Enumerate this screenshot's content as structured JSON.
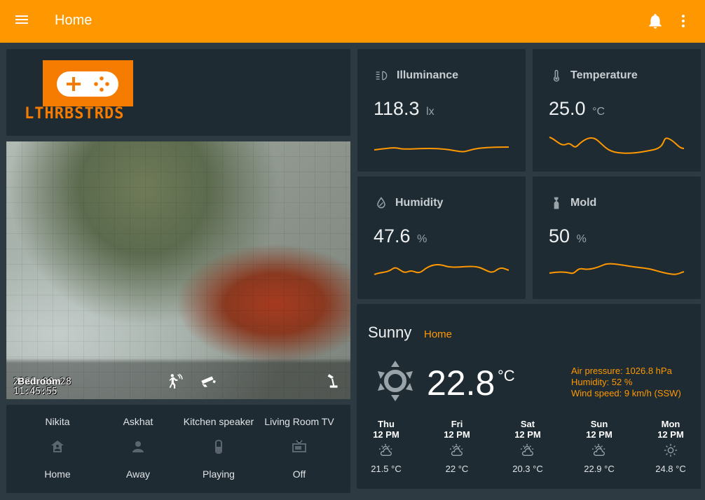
{
  "header": {
    "title": "Home"
  },
  "logo": {
    "text": "LTHRBSTRDS"
  },
  "camera": {
    "name": "Bedroom",
    "date": "2021-09-28",
    "time": "11:45:55"
  },
  "glance": [
    {
      "name": "Nikita",
      "icon": "person-home-icon",
      "state": "Home"
    },
    {
      "name": "Askhat",
      "icon": "person-icon",
      "state": "Away"
    },
    {
      "name": "Kitchen speaker",
      "icon": "speaker-icon",
      "state": "Playing"
    },
    {
      "name": "Living Room TV",
      "icon": "tv-icon",
      "state": "Off"
    }
  ],
  "sensors": [
    {
      "name": "Illuminance",
      "icon": "illuminance-icon",
      "value": "118.3",
      "unit": "lx"
    },
    {
      "name": "Temperature",
      "icon": "thermometer-icon",
      "value": "25.0",
      "unit": "°C"
    },
    {
      "name": "Humidity",
      "icon": "water-percent-icon",
      "value": "47.6",
      "unit": "%"
    },
    {
      "name": "Mold",
      "icon": "spray-bottle-icon",
      "value": "50",
      "unit": "%"
    }
  ],
  "weather": {
    "state": "Sunny",
    "location": "Home",
    "temperature": "22.8",
    "unit": "°C",
    "attributes": [
      "Air pressure: 1026.8 hPa",
      "Humidity: 52 %",
      "Wind speed: 9 km/h (SSW)"
    ],
    "forecast": [
      {
        "day": "Thu",
        "hour": "12 PM",
        "icon": "partly-cloudy-icon",
        "temp": "21.5 °C"
      },
      {
        "day": "Fri",
        "hour": "12 PM",
        "icon": "partly-cloudy-icon",
        "temp": "22 °C"
      },
      {
        "day": "Sat",
        "hour": "12 PM",
        "icon": "partly-cloudy-icon",
        "temp": "20.3 °C"
      },
      {
        "day": "Sun",
        "hour": "12 PM",
        "icon": "partly-cloudy-icon",
        "temp": "22.9 °C"
      },
      {
        "day": "Mon",
        "hour": "12 PM",
        "icon": "sunny-icon",
        "temp": "24.8 °C"
      }
    ]
  },
  "colors": {
    "accent": "#ff9800",
    "card": "#1e2b33",
    "background": "#2e3a42"
  }
}
